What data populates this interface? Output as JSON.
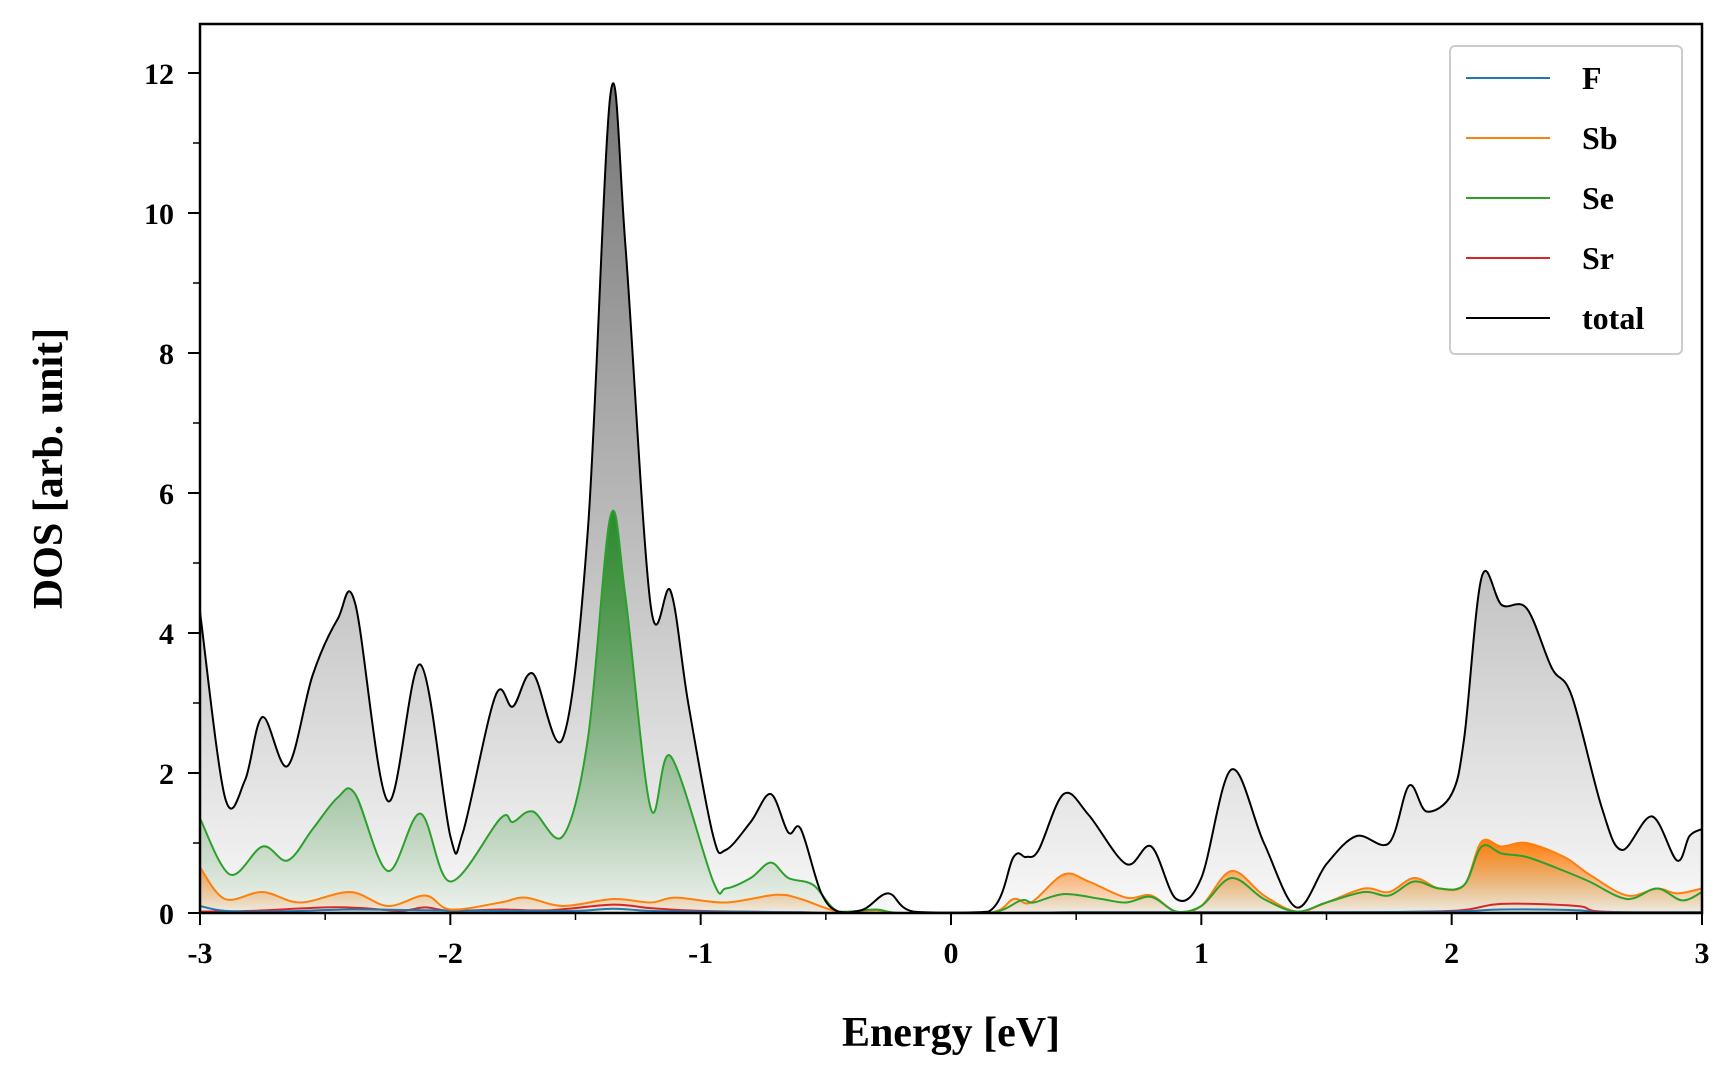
{
  "chart_data": {
    "type": "area",
    "xlabel": "Energy [eV]",
    "ylabel": "DOS [arb. unit]",
    "xlim": [
      -3,
      3
    ],
    "ylim": [
      0,
      12.7
    ],
    "x_ticks": [
      -3,
      -2,
      -1,
      0,
      1,
      2,
      3
    ],
    "x_tick_labels": [
      "-3",
      "-2",
      "-1",
      "0",
      "1",
      "2",
      "3"
    ],
    "y_ticks": [
      0,
      2,
      4,
      6,
      8,
      10,
      12
    ],
    "y_tick_labels": [
      "0",
      "2",
      "4",
      "6",
      "8",
      "10",
      "12"
    ],
    "grid": false,
    "legend_position": "top-right",
    "series": [
      {
        "name": "F",
        "color": "#1f77b4",
        "filled": false,
        "points": [
          [
            -3.0,
            0.1
          ],
          [
            -2.9,
            0.03
          ],
          [
            -2.7,
            0.02
          ],
          [
            -2.4,
            0.05
          ],
          [
            -2.1,
            0.04
          ],
          [
            -1.8,
            0.03
          ],
          [
            -1.5,
            0.03
          ],
          [
            -1.35,
            0.06
          ],
          [
            -1.2,
            0.03
          ],
          [
            -1.0,
            0.02
          ],
          [
            -0.6,
            0.01
          ],
          [
            -0.45,
            0.0
          ],
          [
            0.2,
            0.0
          ],
          [
            0.5,
            0.01
          ],
          [
            1.0,
            0.01
          ],
          [
            1.5,
            0.01
          ],
          [
            2.0,
            0.02
          ],
          [
            2.2,
            0.05
          ],
          [
            2.5,
            0.04
          ],
          [
            2.6,
            0.01
          ],
          [
            3.0,
            0.01
          ]
        ]
      },
      {
        "name": "Sb",
        "color": "#ff7f0e",
        "filled": true,
        "points": [
          [
            -3.0,
            0.65
          ],
          [
            -2.9,
            0.2
          ],
          [
            -2.75,
            0.3
          ],
          [
            -2.6,
            0.15
          ],
          [
            -2.4,
            0.3
          ],
          [
            -2.25,
            0.1
          ],
          [
            -2.1,
            0.25
          ],
          [
            -2.0,
            0.05
          ],
          [
            -1.8,
            0.15
          ],
          [
            -1.7,
            0.22
          ],
          [
            -1.55,
            0.1
          ],
          [
            -1.35,
            0.2
          ],
          [
            -1.2,
            0.15
          ],
          [
            -1.1,
            0.22
          ],
          [
            -0.9,
            0.15
          ],
          [
            -0.7,
            0.26
          ],
          [
            -0.6,
            0.2
          ],
          [
            -0.45,
            0.02
          ],
          [
            -0.3,
            0.04
          ],
          [
            -0.2,
            0.0
          ],
          [
            0.15,
            0.0
          ],
          [
            0.25,
            0.2
          ],
          [
            0.32,
            0.15
          ],
          [
            0.45,
            0.55
          ],
          [
            0.55,
            0.45
          ],
          [
            0.7,
            0.22
          ],
          [
            0.8,
            0.25
          ],
          [
            0.9,
            0.02
          ],
          [
            1.0,
            0.1
          ],
          [
            1.12,
            0.6
          ],
          [
            1.25,
            0.25
          ],
          [
            1.38,
            0.02
          ],
          [
            1.5,
            0.15
          ],
          [
            1.65,
            0.35
          ],
          [
            1.75,
            0.3
          ],
          [
            1.85,
            0.5
          ],
          [
            1.95,
            0.35
          ],
          [
            2.05,
            0.4
          ],
          [
            2.12,
            1.02
          ],
          [
            2.2,
            0.95
          ],
          [
            2.3,
            1.0
          ],
          [
            2.45,
            0.8
          ],
          [
            2.55,
            0.55
          ],
          [
            2.7,
            0.25
          ],
          [
            2.82,
            0.35
          ],
          [
            2.9,
            0.28
          ],
          [
            3.0,
            0.35
          ]
        ]
      },
      {
        "name": "Se",
        "color": "#2ca02c",
        "filled": true,
        "points": [
          [
            -3.0,
            1.35
          ],
          [
            -2.88,
            0.55
          ],
          [
            -2.75,
            0.95
          ],
          [
            -2.65,
            0.75
          ],
          [
            -2.55,
            1.2
          ],
          [
            -2.45,
            1.65
          ],
          [
            -2.38,
            1.7
          ],
          [
            -2.25,
            0.6
          ],
          [
            -2.12,
            1.42
          ],
          [
            -2.0,
            0.45
          ],
          [
            -1.8,
            1.35
          ],
          [
            -1.75,
            1.3
          ],
          [
            -1.67,
            1.45
          ],
          [
            -1.55,
            1.1
          ],
          [
            -1.45,
            2.5
          ],
          [
            -1.36,
            5.67
          ],
          [
            -1.3,
            4.5
          ],
          [
            -1.2,
            1.5
          ],
          [
            -1.12,
            2.24
          ],
          [
            -0.95,
            0.45
          ],
          [
            -0.9,
            0.35
          ],
          [
            -0.8,
            0.5
          ],
          [
            -0.72,
            0.72
          ],
          [
            -0.65,
            0.5
          ],
          [
            -0.55,
            0.4
          ],
          [
            -0.45,
            0.02
          ],
          [
            -0.3,
            0.05
          ],
          [
            -0.2,
            0.0
          ],
          [
            0.15,
            0.0
          ],
          [
            0.28,
            0.18
          ],
          [
            0.33,
            0.15
          ],
          [
            0.45,
            0.27
          ],
          [
            0.6,
            0.2
          ],
          [
            0.7,
            0.15
          ],
          [
            0.8,
            0.23
          ],
          [
            0.9,
            0.02
          ],
          [
            1.0,
            0.1
          ],
          [
            1.12,
            0.5
          ],
          [
            1.25,
            0.2
          ],
          [
            1.38,
            0.02
          ],
          [
            1.5,
            0.15
          ],
          [
            1.65,
            0.3
          ],
          [
            1.75,
            0.25
          ],
          [
            1.85,
            0.45
          ],
          [
            1.95,
            0.35
          ],
          [
            2.05,
            0.4
          ],
          [
            2.12,
            0.95
          ],
          [
            2.2,
            0.85
          ],
          [
            2.3,
            0.8
          ],
          [
            2.45,
            0.6
          ],
          [
            2.55,
            0.45
          ],
          [
            2.7,
            0.2
          ],
          [
            2.82,
            0.35
          ],
          [
            2.92,
            0.18
          ],
          [
            3.0,
            0.3
          ]
        ]
      },
      {
        "name": "Sr",
        "color": "#d62728",
        "filled": false,
        "points": [
          [
            -3.0,
            0.02
          ],
          [
            -2.8,
            0.03
          ],
          [
            -2.5,
            0.08
          ],
          [
            -2.35,
            0.07
          ],
          [
            -2.2,
            0.03
          ],
          [
            -2.1,
            0.08
          ],
          [
            -2.0,
            0.03
          ],
          [
            -1.8,
            0.05
          ],
          [
            -1.6,
            0.04
          ],
          [
            -1.35,
            0.12
          ],
          [
            -1.2,
            0.07
          ],
          [
            -1.0,
            0.03
          ],
          [
            -0.6,
            0.01
          ],
          [
            -0.45,
            0.0
          ],
          [
            0.2,
            0.0
          ],
          [
            0.5,
            0.01
          ],
          [
            1.0,
            0.01
          ],
          [
            1.5,
            0.01
          ],
          [
            2.0,
            0.03
          ],
          [
            2.2,
            0.13
          ],
          [
            2.5,
            0.1
          ],
          [
            2.6,
            0.02
          ],
          [
            3.0,
            0.01
          ]
        ]
      },
      {
        "name": "total",
        "color": "#000000",
        "filled": true,
        "points": [
          [
            -3.0,
            4.3
          ],
          [
            -2.9,
            1.65
          ],
          [
            -2.82,
            1.9
          ],
          [
            -2.75,
            2.8
          ],
          [
            -2.65,
            2.1
          ],
          [
            -2.55,
            3.4
          ],
          [
            -2.45,
            4.2
          ],
          [
            -2.38,
            4.42
          ],
          [
            -2.25,
            1.6
          ],
          [
            -2.12,
            3.55
          ],
          [
            -2.0,
            1.1
          ],
          [
            -1.95,
            1.15
          ],
          [
            -1.82,
            3.1
          ],
          [
            -1.75,
            2.95
          ],
          [
            -1.67,
            3.42
          ],
          [
            -1.55,
            2.5
          ],
          [
            -1.45,
            5.5
          ],
          [
            -1.36,
            11.7
          ],
          [
            -1.3,
            9.5
          ],
          [
            -1.2,
            4.4
          ],
          [
            -1.12,
            4.6
          ],
          [
            -1.05,
            3.0
          ],
          [
            -0.95,
            1.1
          ],
          [
            -0.9,
            0.9
          ],
          [
            -0.8,
            1.3
          ],
          [
            -0.72,
            1.7
          ],
          [
            -0.65,
            1.15
          ],
          [
            -0.6,
            1.2
          ],
          [
            -0.52,
            0.3
          ],
          [
            -0.45,
            0.02
          ],
          [
            -0.35,
            0.05
          ],
          [
            -0.25,
            0.28
          ],
          [
            -0.15,
            0.02
          ],
          [
            0.15,
            0.02
          ],
          [
            0.25,
            0.8
          ],
          [
            0.3,
            0.8
          ],
          [
            0.35,
            0.9
          ],
          [
            0.45,
            1.7
          ],
          [
            0.55,
            1.4
          ],
          [
            0.7,
            0.7
          ],
          [
            0.8,
            0.95
          ],
          [
            0.9,
            0.2
          ],
          [
            1.0,
            0.5
          ],
          [
            1.12,
            2.05
          ],
          [
            1.25,
            1.0
          ],
          [
            1.38,
            0.08
          ],
          [
            1.5,
            0.7
          ],
          [
            1.62,
            1.1
          ],
          [
            1.75,
            1.0
          ],
          [
            1.83,
            1.82
          ],
          [
            1.9,
            1.45
          ],
          [
            2.0,
            1.7
          ],
          [
            2.05,
            2.5
          ],
          [
            2.12,
            4.8
          ],
          [
            2.2,
            4.4
          ],
          [
            2.3,
            4.35
          ],
          [
            2.4,
            3.5
          ],
          [
            2.48,
            3.1
          ],
          [
            2.6,
            1.5
          ],
          [
            2.68,
            0.9
          ],
          [
            2.8,
            1.38
          ],
          [
            2.9,
            0.75
          ],
          [
            2.95,
            1.1
          ],
          [
            3.0,
            1.2
          ]
        ]
      }
    ]
  }
}
